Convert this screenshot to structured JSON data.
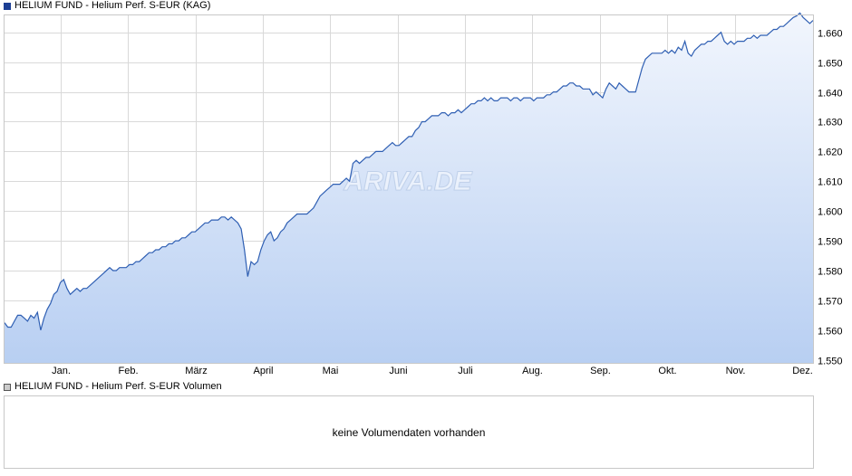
{
  "legend": {
    "price_label": "HELIUM FUND - Helium Perf. S-EUR (KAG)",
    "volume_label": "HELIUM FUND - Helium Perf. S-EUR Volumen"
  },
  "volume": {
    "message": "keine Volumendaten vorhanden"
  },
  "watermark": "ARIVA.DE",
  "colors": {
    "line": "#2f5fb3",
    "fill_top": "#f2f6fd",
    "fill_bottom": "#b8cff2",
    "grid": "#d9d9d9"
  },
  "chart_data": {
    "type": "area",
    "x_ticks": [
      "Jan.",
      "Feb.",
      "März",
      "April",
      "Mai",
      "Juni",
      "Juli",
      "Aug.",
      "Sep.",
      "Okt.",
      "Nov.",
      "Dez."
    ],
    "y_ticks": [
      "1.550",
      "1.560",
      "1.570",
      "1.580",
      "1.590",
      "1.600",
      "1.610",
      "1.620",
      "1.630",
      "1.640",
      "1.650",
      "1.660"
    ],
    "ylim": [
      1549,
      1666
    ],
    "grid": true,
    "series": [
      {
        "values": [
          1562.5,
          1561,
          1561,
          1563,
          1565,
          1565,
          1564,
          1563,
          1565,
          1564,
          1566,
          1560,
          1564,
          1567,
          1569,
          1572,
          1573,
          1576,
          1577,
          1574,
          1572,
          1573,
          1574,
          1573,
          1574,
          1574,
          1575,
          1576,
          1577,
          1578,
          1579,
          1580,
          1581,
          1580,
          1580,
          1581,
          1581,
          1581,
          1582,
          1582,
          1583,
          1583,
          1584,
          1585,
          1586,
          1586,
          1587,
          1587,
          1588,
          1588,
          1589,
          1589,
          1590,
          1590,
          1591,
          1591,
          1592,
          1593,
          1593,
          1594,
          1595,
          1596,
          1596,
          1597,
          1597,
          1597,
          1598,
          1598,
          1597,
          1598,
          1597,
          1596,
          1594,
          1587,
          1578,
          1583,
          1582,
          1583,
          1587,
          1590,
          1592,
          1593,
          1590,
          1591,
          1593,
          1594,
          1596,
          1597,
          1598,
          1599,
          1599,
          1599,
          1599,
          1600,
          1601,
          1603,
          1605,
          1606,
          1607,
          1608,
          1609,
          1609,
          1609,
          1610,
          1611,
          1610,
          1616,
          1617,
          1616,
          1617,
          1618,
          1618,
          1619,
          1620,
          1620,
          1620,
          1621,
          1622,
          1623,
          1622,
          1622,
          1623,
          1624,
          1625,
          1625,
          1627,
          1628,
          1630,
          1630,
          1631,
          1632,
          1632,
          1632,
          1633,
          1633,
          1632,
          1633,
          1633,
          1634,
          1633,
          1634,
          1635,
          1636,
          1636,
          1637,
          1637,
          1638,
          1637,
          1638,
          1637,
          1637,
          1638,
          1638,
          1638,
          1637,
          1638,
          1638,
          1637,
          1638,
          1638,
          1638,
          1637,
          1638,
          1638,
          1638,
          1639,
          1639,
          1640,
          1640,
          1641,
          1642,
          1642,
          1643,
          1643,
          1642,
          1642,
          1641,
          1641,
          1641,
          1639,
          1640,
          1639,
          1638,
          1641,
          1643,
          1642,
          1641,
          1643,
          1642,
          1641,
          1640,
          1640,
          1640,
          1644,
          1648,
          1651,
          1652,
          1653,
          1653,
          1653,
          1653,
          1654,
          1653,
          1654,
          1653,
          1655,
          1654,
          1657,
          1653,
          1652,
          1654,
          1655,
          1656,
          1656,
          1657,
          1657,
          1658,
          1659,
          1660,
          1657,
          1656,
          1657,
          1656,
          1657,
          1657,
          1657,
          1658,
          1658,
          1659,
          1658,
          1659,
          1659,
          1659,
          1660,
          1661,
          1661,
          1662,
          1662,
          1663,
          1664,
          1665,
          1665.5,
          1666.5,
          1665,
          1664,
          1663,
          1664
        ]
      }
    ]
  }
}
